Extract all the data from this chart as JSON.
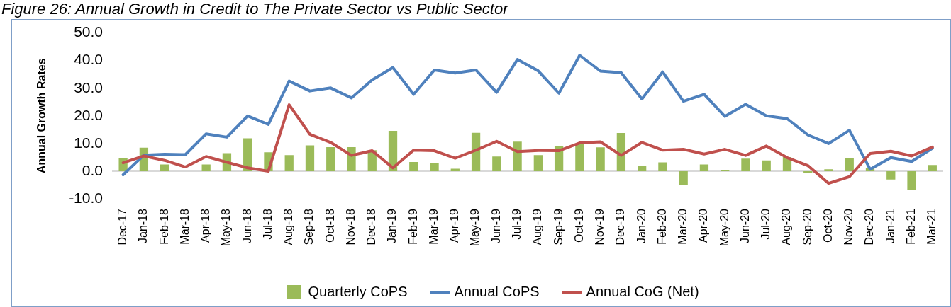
{
  "chart_data": {
    "type": "bar",
    "title": "Figure 26: Annual Growth in Credit to The Private Sector vs Public Sector",
    "ylabel": "Annual Growth Rates",
    "categories": [
      "Dec-17",
      "Jan-18",
      "Feb-18",
      "Mar-18",
      "Apr-18",
      "May-18",
      "Jun-18",
      "Jul-18",
      "Aug-18",
      "Sep-18",
      "Oct-18",
      "Nov-18",
      "Dec-18",
      "Jan-19",
      "Feb-19",
      "Mar-19",
      "Apr-19",
      "May-19",
      "Jun-19",
      "Jul-19",
      "Aug-19",
      "Sep-19",
      "Oct-19",
      "Nov-19",
      "Dec-19",
      "Jan-20",
      "Feb-20",
      "Mar-20",
      "Apr-20",
      "May-20",
      "Jun-20",
      "Jul-20",
      "Aug-20",
      "Sep-20",
      "Oct-20",
      "Nov-20",
      "Dec-20",
      "Jan-21",
      "Feb-21",
      "Mar-21"
    ],
    "series": [
      {
        "name": "Quarterly CoPS",
        "color": "#9bbb59",
        "values": [
          4.7,
          8.5,
          2.4,
          null,
          2.4,
          6.5,
          11.9,
          6.8,
          5.8,
          9.3,
          8.7,
          8.7,
          7.6,
          14.6,
          3.3,
          2.9,
          0.9,
          13.9,
          5.3,
          10.7,
          5.8,
          9.1,
          9.7,
          8.6,
          13.8,
          1.8,
          3.2,
          -5.0,
          2.4,
          0.3,
          4.5,
          3.9,
          5.1,
          -0.6,
          0.7,
          4.7,
          1.2,
          -3.0,
          -6.9,
          2.2
        ]
      },
      {
        "name": "Annual CoPS",
        "type": "line",
        "color": "#4f81bd",
        "values": [
          -1.3,
          5.8,
          6.1,
          6.0,
          13.5,
          12.3,
          20.0,
          16.9,
          32.6,
          29.0,
          30.1,
          26.5,
          33.0,
          37.5,
          27.8,
          36.6,
          35.5,
          36.6,
          28.5,
          40.4,
          36.3,
          28.2,
          41.9,
          36.2,
          35.6,
          26.1,
          35.9,
          25.3,
          27.8,
          19.8,
          24.2,
          20.0,
          19.0,
          13.1,
          10.0,
          14.8,
          0.7,
          4.9,
          3.5,
          8.3
        ]
      },
      {
        "name": "Annual CoG (Net)",
        "type": "line",
        "color": "#c0504d",
        "values": [
          3.0,
          5.5,
          3.9,
          1.5,
          5.3,
          3.2,
          1.2,
          0.0,
          24.0,
          13.3,
          10.4,
          5.7,
          7.4,
          1.2,
          7.6,
          7.4,
          4.7,
          7.6,
          10.8,
          7.1,
          7.5,
          7.4,
          10.2,
          10.6,
          5.7,
          10.4,
          7.6,
          7.9,
          6.2,
          7.9,
          5.7,
          9.1,
          4.9,
          2.0,
          -4.4,
          -2.0,
          6.4,
          7.2,
          5.5,
          8.7
        ]
      }
    ],
    "ylim": [
      -10,
      50
    ],
    "yticks": [
      {
        "value": -10,
        "label": "-10.0"
      },
      {
        "value": 0,
        "label": "0.0"
      },
      {
        "value": 10,
        "label": "10.0"
      },
      {
        "value": 20,
        "label": "20.0"
      },
      {
        "value": 30,
        "label": "30.0"
      },
      {
        "value": 40,
        "label": "40.0"
      },
      {
        "value": 50,
        "label": "50.0"
      }
    ],
    "legend": "bottom",
    "marker": "none"
  }
}
